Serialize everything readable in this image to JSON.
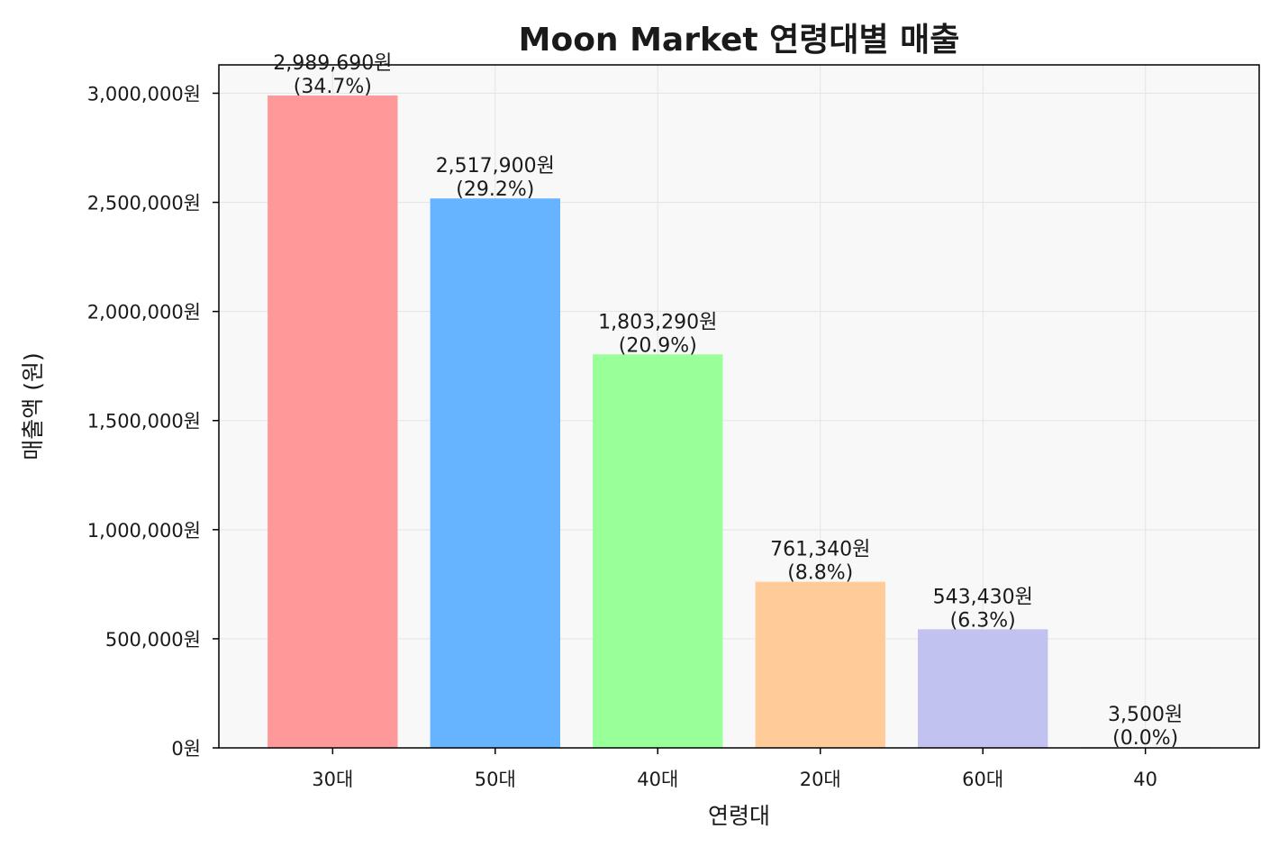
{
  "chart_data": {
    "type": "bar",
    "title": "Moon Market 연령대별 매출",
    "xlabel": "연령대",
    "ylabel": "매출액 (원)",
    "categories": [
      "30대",
      "50대",
      "40대",
      "20대",
      "60대",
      "40"
    ],
    "values": [
      2989690,
      2517900,
      1803290,
      761340,
      543430,
      3500
    ],
    "value_labels": [
      "2,989,690원",
      "2,517,900원",
      "1,803,290원",
      "761,340원",
      "543,430원",
      "3,500원"
    ],
    "percent_labels": [
      "(34.7%)",
      "(29.2%)",
      "(20.9%)",
      "(8.8%)",
      "(6.3%)",
      "(0.0%)"
    ],
    "colors": [
      "#ff9999",
      "#66b3ff",
      "#99ff99",
      "#ffcc99",
      "#c2c2f0",
      "#ffb3e6"
    ],
    "ylim": [
      0,
      3130000
    ],
    "yticks": [
      0,
      500000,
      1000000,
      1500000,
      2000000,
      2500000,
      3000000
    ],
    "ytick_labels": [
      "0원",
      "500,000원",
      "1,000,000원",
      "1,500,000원",
      "2,000,000원",
      "2,500,000원",
      "3,000,000원"
    ],
    "grid": true,
    "plot_background": "#f8f8f8"
  }
}
